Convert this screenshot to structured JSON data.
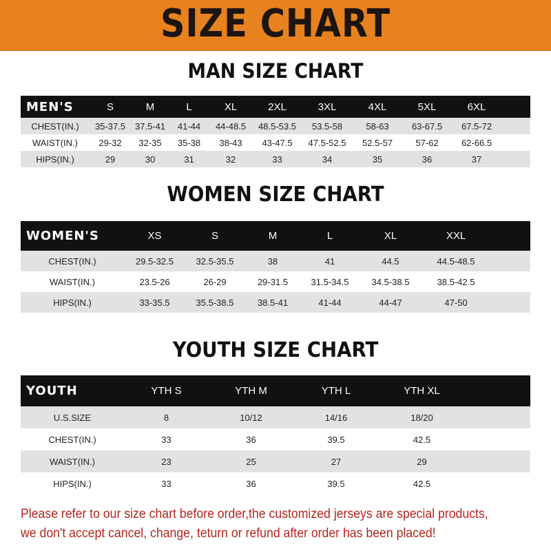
{
  "banner": {
    "title": "SIZE CHART",
    "color": "#e8821e"
  },
  "men": {
    "title": "MAN SIZE CHART",
    "header": [
      "MEN'S",
      "S",
      "M",
      "L",
      "XL",
      "2XL",
      "3XL",
      "4XL",
      "5XL",
      "6XL"
    ],
    "rows": [
      [
        "CHEST(IN.)",
        "35-37.5",
        "37.5-41",
        "41-44",
        "44-48.5",
        "48.5-53.5",
        "53.5-58",
        "58-63",
        "63-67.5",
        "67.5-72"
      ],
      [
        "WAIST(IN.)",
        "29-32",
        "32-35",
        "35-38",
        "38-43",
        "43-47.5",
        "47.5-52.5",
        "52.5-57",
        "57-62",
        "62-66.5"
      ],
      [
        "HIPS(IN.)",
        "29",
        "30",
        "31",
        "32",
        "33",
        "34",
        "35",
        "36",
        "37"
      ]
    ]
  },
  "women": {
    "title": "WOMEN SIZE CHART",
    "header": [
      "WOMEN'S",
      "XS",
      "S",
      "M",
      "L",
      "XL",
      "XXL"
    ],
    "rows": [
      [
        "CHEST(IN.)",
        "29.5-32.5",
        "32.5-35.5",
        "38",
        "41",
        "44.5",
        "44.5-48.5"
      ],
      [
        "WAIST(IN.)",
        "23.5-26",
        "26-29",
        "29-31.5",
        "31.5-34.5",
        "34.5-38.5",
        "38.5-42.5"
      ],
      [
        "HIPS(IN.)",
        "33-35.5",
        "35.5-38.5",
        "38.5-41",
        "41-44",
        "44-47",
        "47-50"
      ]
    ]
  },
  "youth": {
    "title": "YOUTH SIZE CHART",
    "header": [
      "YOUTH",
      "YTH S",
      "YTH M",
      "YTH L",
      "YTH XL"
    ],
    "rows": [
      [
        "U.S.SIZE",
        "8",
        "10/12",
        "14/16",
        "18/20"
      ],
      [
        "CHEST(IN.)",
        "33",
        "36",
        "39.5",
        "42.5"
      ],
      [
        "WAIST(IN.)",
        "23",
        "25",
        "27",
        "29"
      ],
      [
        "HIPS(IN.)",
        "33",
        "36",
        "39.5",
        "42.5"
      ]
    ]
  },
  "footer": {
    "line1": "Please refer to our size chart before order,the customized jerseys are special products,",
    "line2": "we don't accept cancel, change, teturn or refund after order has been placed!",
    "color": "#b3261e"
  }
}
